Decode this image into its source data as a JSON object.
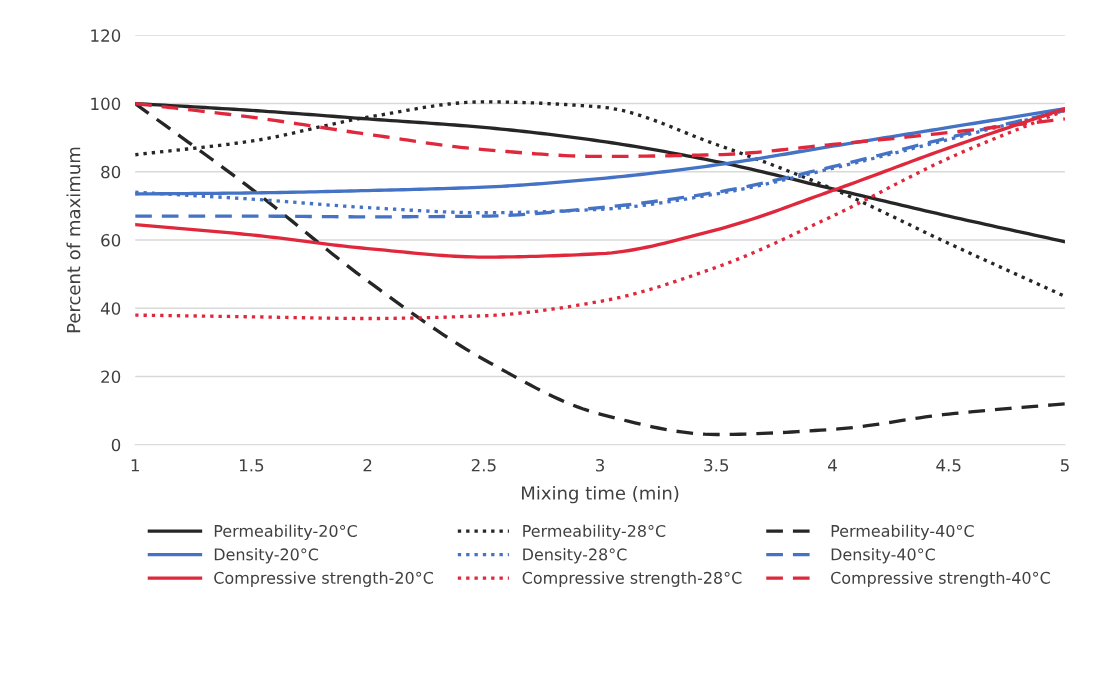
{
  "chart_data": {
    "type": "line",
    "xlabel": "Mixing time (min)",
    "ylabel": "Percent of maximum",
    "x": [
      1,
      1.5,
      2,
      2.5,
      3,
      3.5,
      4,
      4.5,
      5
    ],
    "xlim": [
      1,
      5
    ],
    "xticks": [
      1,
      1.5,
      2,
      2.5,
      3,
      3.5,
      4,
      4.5,
      5
    ],
    "ylim": [
      0,
      120
    ],
    "yticks": [
      0,
      20,
      40,
      60,
      80,
      100,
      120
    ],
    "grid": "y",
    "legend": "bottom",
    "marker": "none",
    "series": [
      {
        "name": "Permeability-20°C",
        "color": "#262626",
        "line_style": "solid",
        "values": [
          100,
          98,
          95.5,
          93,
          89,
          83,
          75,
          67,
          59.5
        ]
      },
      {
        "name": "Permeability-28°C",
        "color": "#262626",
        "line_style": "dotted",
        "values": [
          85,
          89,
          96,
          100.5,
          99,
          88,
          75,
          59,
          43.5
        ]
      },
      {
        "name": "Permeability-40°C",
        "color": "#262626",
        "line_style": "dashed",
        "values": [
          100,
          75,
          48,
          25,
          9,
          3,
          4.5,
          9,
          12
        ]
      },
      {
        "name": "Density-20°C",
        "color": "#4472c4",
        "line_style": "solid",
        "values": [
          73.5,
          73.8,
          74.5,
          75.5,
          78,
          82,
          87.5,
          93,
          98.5
        ]
      },
      {
        "name": "Density-28°C",
        "color": "#4472c4",
        "line_style": "dotted",
        "values": [
          74,
          72,
          69.5,
          68,
          69,
          73.5,
          81,
          89.5,
          98
        ]
      },
      {
        "name": "Density-40°C",
        "color": "#4472c4",
        "line_style": "dashed",
        "values": [
          67,
          67,
          66.8,
          67,
          69.5,
          74,
          81.5,
          90,
          98
        ]
      },
      {
        "name": "Compressive strength-20°C",
        "color": "#e0283c",
        "line_style": "solid",
        "values": [
          64.5,
          61.5,
          57.5,
          55,
          56,
          63,
          74.5,
          87,
          98.5
        ]
      },
      {
        "name": "Compressive strength-28°C",
        "color": "#e0283c",
        "line_style": "dotted",
        "values": [
          38,
          37.5,
          37,
          37.8,
          42,
          52,
          67,
          84,
          98
        ]
      },
      {
        "name": "Compressive strength-40°C",
        "color": "#e0283c",
        "line_style": "dashed",
        "values": [
          100,
          96,
          91,
          86.5,
          84.5,
          85,
          88,
          91.5,
          95.5
        ]
      }
    ]
  }
}
